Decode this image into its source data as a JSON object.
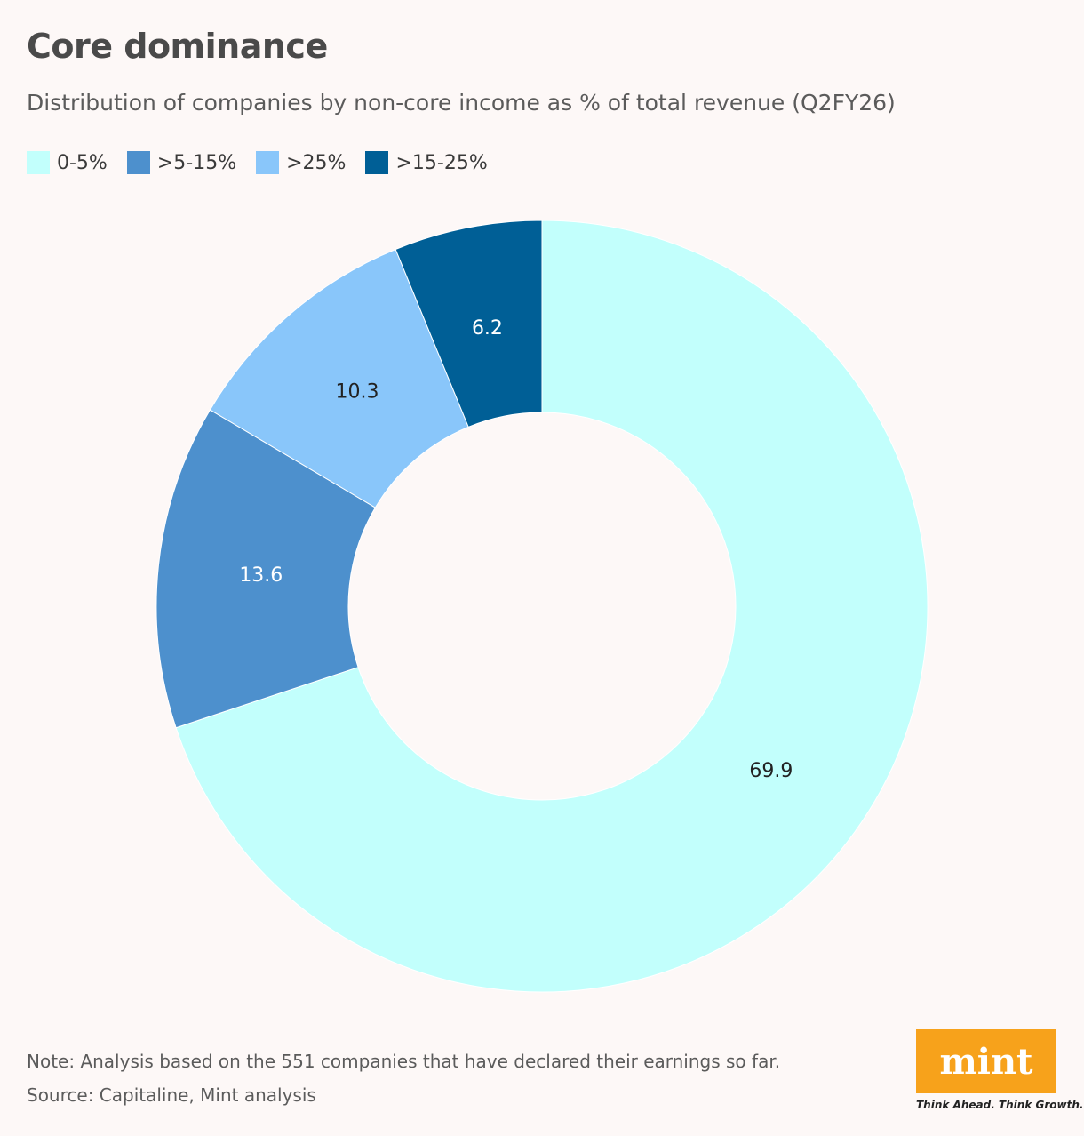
{
  "title": "Core dominance",
  "subtitle": "Distribution of companies by non-core income as % of total revenue (Q2FY26)",
  "legend": [
    {
      "label": "0-5%",
      "color": "#c2fffc"
    },
    {
      "label": ">5-15%",
      "color": "#4d90cd"
    },
    {
      "label": ">25%",
      "color": "#89c6fa"
    },
    {
      "label": ">15-25%",
      "color": "#005f96"
    }
  ],
  "chart_data": {
    "type": "pie",
    "variant": "donut",
    "title": "Core dominance",
    "subtitle": "Distribution of companies by non-core income as % of total revenue (Q2FY26)",
    "categories": [
      "0-5%",
      ">5-15%",
      ">25%",
      ">15-25%"
    ],
    "values": [
      69.9,
      13.6,
      10.3,
      6.2
    ],
    "colors": [
      "#c2fffc",
      "#4d90cd",
      "#89c6fa",
      "#005f96"
    ],
    "label_colors": [
      "#222222",
      "#ffffff",
      "#222222",
      "#ffffff"
    ],
    "legend_position": "top-left",
    "direction": "clockwise from top"
  },
  "note": "Note: Analysis based on the 551 companies that have declared their earnings so far.",
  "source": "Source: Capitaline, Mint analysis",
  "logo": {
    "text": "mint",
    "tagline": "Think Ahead. Think Growth.",
    "color": "#f7a21b"
  }
}
